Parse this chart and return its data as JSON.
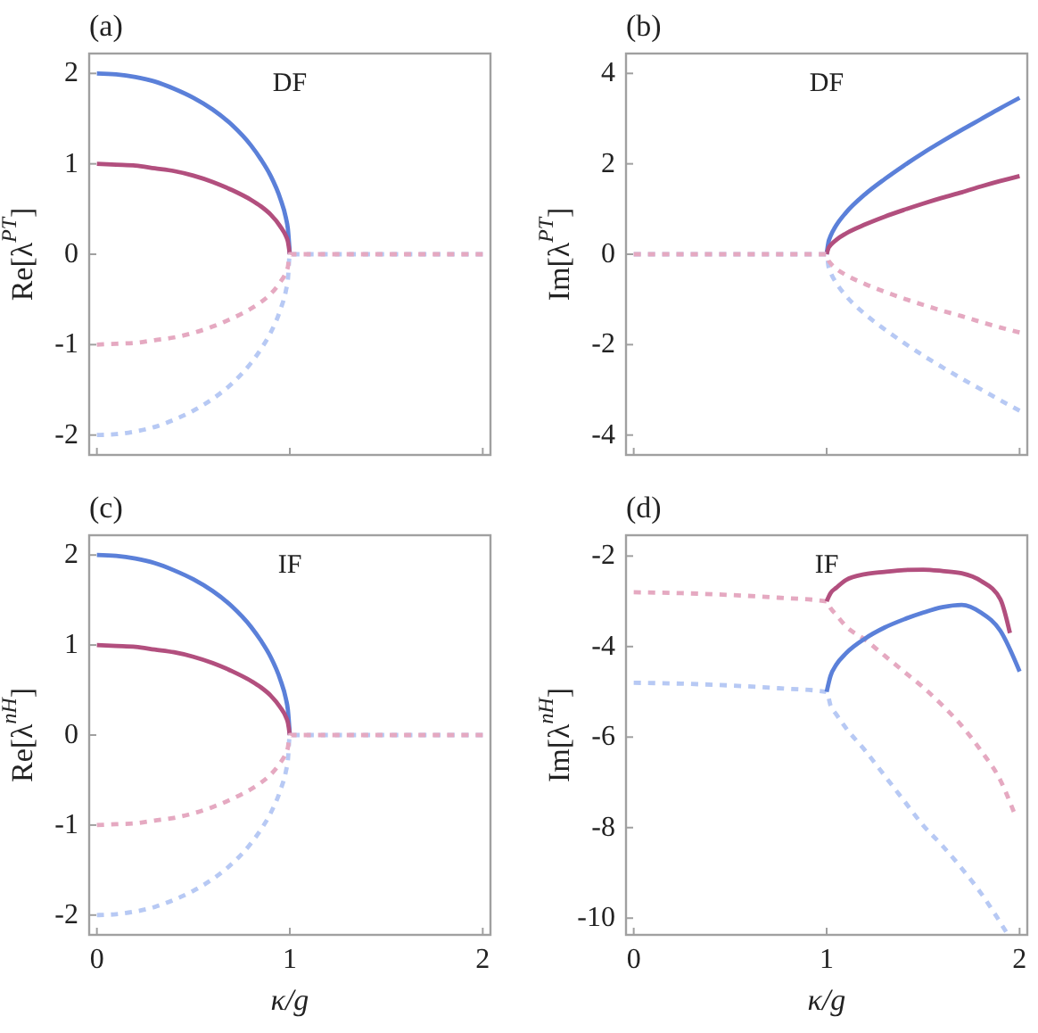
{
  "chart_data": [
    {
      "type": "line",
      "title": "(a)",
      "annotations": [
        "DF"
      ],
      "ylabel": "Re[λ$^{PT}$]",
      "tick_labels": "y",
      "xlim": [
        -0.04,
        2.04
      ],
      "xticks": [
        0,
        1,
        2
      ],
      "ylim": [
        -2.22,
        2.22
      ],
      "yticks": [
        2,
        1,
        0,
        -1,
        -2
      ],
      "x": [
        0,
        0.1,
        0.2,
        0.3,
        0.4,
        0.5,
        0.6,
        0.7,
        0.8,
        0.85,
        0.9,
        0.95,
        0.98,
        0.99,
        1,
        1.01,
        1.02,
        1.05,
        1.1,
        1.2,
        1.3,
        1.4,
        1.5,
        1.6,
        1.7,
        1.8,
        1.9,
        2
      ],
      "series": [
        {
          "color": "#5b80d9",
          "line_style": "solid",
          "values": [
            2,
            1.99,
            1.96,
            1.91,
            1.83,
            1.73,
            1.6,
            1.43,
            1.2,
            1.05,
            0.87,
            0.62,
            0.4,
            0.28,
            0,
            null,
            null,
            null,
            null,
            null,
            null,
            null,
            null,
            null,
            null,
            null,
            null,
            null
          ]
        },
        {
          "color": "#b24f7e",
          "line_style": "solid",
          "values": [
            1,
            0.99,
            0.98,
            0.95,
            0.92,
            0.87,
            0.8,
            0.71,
            0.6,
            0.53,
            0.44,
            0.31,
            0.2,
            0.14,
            0,
            null,
            null,
            null,
            null,
            null,
            null,
            null,
            null,
            null,
            null,
            null,
            null,
            null
          ]
        },
        {
          "color": "#b7c9f4",
          "line_style": "dashed",
          "values": [
            -2,
            -1.99,
            -1.96,
            -1.91,
            -1.83,
            -1.73,
            -1.6,
            -1.43,
            -1.2,
            -1.05,
            -0.87,
            -0.62,
            -0.4,
            -0.28,
            0,
            0,
            0,
            0,
            0,
            0,
            0,
            0,
            0,
            0,
            0,
            0,
            0,
            0
          ]
        },
        {
          "color": "#e5a9c1",
          "line_style": "dashed",
          "values": [
            -1,
            -0.99,
            -0.98,
            -0.95,
            -0.92,
            -0.87,
            -0.8,
            -0.71,
            -0.6,
            -0.53,
            -0.44,
            -0.31,
            -0.2,
            -0.14,
            0,
            0,
            0,
            0,
            0,
            0,
            0,
            0,
            0,
            0,
            0,
            0,
            0,
            0
          ]
        }
      ]
    },
    {
      "type": "line",
      "title": "(b)",
      "annotations": [
        "DF"
      ],
      "ylabel": "Im[λ$^{PT}$]",
      "tick_labels": "y",
      "xlim": [
        -0.04,
        2.04
      ],
      "xticks": [
        0,
        1,
        2
      ],
      "ylim": [
        -4.44,
        4.44
      ],
      "yticks": [
        4,
        2,
        0,
        -2,
        -4
      ],
      "x": [
        0,
        0.1,
        0.2,
        0.3,
        0.4,
        0.5,
        0.6,
        0.7,
        0.8,
        0.85,
        0.9,
        0.95,
        0.98,
        0.99,
        1,
        1.01,
        1.02,
        1.05,
        1.1,
        1.2,
        1.3,
        1.4,
        1.5,
        1.6,
        1.7,
        1.8,
        1.9,
        2
      ],
      "series": [
        {
          "color": "#5b80d9",
          "line_style": "solid",
          "values": [
            null,
            null,
            null,
            null,
            null,
            null,
            null,
            null,
            null,
            null,
            null,
            null,
            null,
            null,
            0,
            0.28,
            0.4,
            0.64,
            0.92,
            1.33,
            1.66,
            1.96,
            2.24,
            2.5,
            2.75,
            2.99,
            3.23,
            3.46
          ]
        },
        {
          "color": "#b24f7e",
          "line_style": "solid",
          "values": [
            null,
            null,
            null,
            null,
            null,
            null,
            null,
            null,
            null,
            null,
            null,
            null,
            null,
            null,
            0,
            0.14,
            0.2,
            0.32,
            0.46,
            0.66,
            0.83,
            0.98,
            1.12,
            1.25,
            1.37,
            1.5,
            1.62,
            1.73
          ]
        },
        {
          "color": "#b7c9f4",
          "line_style": "dashed",
          "values": [
            0,
            0,
            0,
            0,
            0,
            0,
            0,
            0,
            0,
            0,
            0,
            0,
            0,
            0,
            0,
            -0.28,
            -0.4,
            -0.64,
            -0.92,
            -1.33,
            -1.66,
            -1.96,
            -2.24,
            -2.5,
            -2.75,
            -2.99,
            -3.23,
            -3.46
          ]
        },
        {
          "color": "#e5a9c1",
          "line_style": "dashed",
          "values": [
            0,
            0,
            0,
            0,
            0,
            0,
            0,
            0,
            0,
            0,
            0,
            0,
            0,
            0,
            0,
            -0.14,
            -0.2,
            -0.32,
            -0.46,
            -0.66,
            -0.83,
            -0.98,
            -1.12,
            -1.25,
            -1.37,
            -1.5,
            -1.62,
            -1.73
          ]
        }
      ]
    },
    {
      "type": "line",
      "title": "(c)",
      "annotations": [
        "IF"
      ],
      "xlabel": "κ/g",
      "ylabel": "Re[λ$^{nH}$]",
      "xlim": [
        -0.04,
        2.04
      ],
      "xticks": [
        0,
        1,
        2
      ],
      "ylim": [
        -2.22,
        2.22
      ],
      "yticks": [
        2,
        1,
        0,
        -1,
        -2
      ],
      "x": [
        0,
        0.1,
        0.2,
        0.3,
        0.4,
        0.5,
        0.6,
        0.7,
        0.8,
        0.85,
        0.9,
        0.95,
        0.98,
        0.99,
        1,
        1.01,
        1.02,
        1.05,
        1.1,
        1.2,
        1.3,
        1.4,
        1.5,
        1.6,
        1.7,
        1.8,
        1.9,
        2
      ],
      "series": [
        {
          "color": "#5b80d9",
          "line_style": "solid",
          "values": [
            2,
            1.99,
            1.96,
            1.91,
            1.83,
            1.73,
            1.6,
            1.43,
            1.2,
            1.05,
            0.87,
            0.62,
            0.4,
            0.28,
            0,
            null,
            null,
            null,
            null,
            null,
            null,
            null,
            null,
            null,
            null,
            null,
            null,
            null
          ]
        },
        {
          "color": "#b24f7e",
          "line_style": "solid",
          "values": [
            1,
            0.99,
            0.98,
            0.95,
            0.92,
            0.87,
            0.8,
            0.71,
            0.6,
            0.53,
            0.44,
            0.31,
            0.2,
            0.14,
            0,
            null,
            null,
            null,
            null,
            null,
            null,
            null,
            null,
            null,
            null,
            null,
            null,
            null
          ]
        },
        {
          "color": "#b7c9f4",
          "line_style": "dashed",
          "values": [
            -2,
            -1.99,
            -1.96,
            -1.91,
            -1.83,
            -1.73,
            -1.6,
            -1.43,
            -1.2,
            -1.05,
            -0.87,
            -0.62,
            -0.4,
            -0.28,
            0,
            0,
            0,
            0,
            0,
            0,
            0,
            0,
            0,
            0,
            0,
            0,
            0,
            0
          ]
        },
        {
          "color": "#e5a9c1",
          "line_style": "dashed",
          "values": [
            -1,
            -0.99,
            -0.98,
            -0.95,
            -0.92,
            -0.87,
            -0.8,
            -0.71,
            -0.6,
            -0.53,
            -0.44,
            -0.31,
            -0.2,
            -0.14,
            0,
            0,
            0,
            0,
            0,
            0,
            0,
            0,
            0,
            0,
            0,
            0,
            0,
            0
          ]
        }
      ]
    },
    {
      "type": "line",
      "title": "(d)",
      "annotations": [
        "IF"
      ],
      "xlabel": "κ/g",
      "ylabel": "Im[λ$^{nH}$]",
      "xlim": [
        -0.04,
        2.04
      ],
      "xticks": [
        0,
        1,
        2
      ],
      "ylim": [
        -10.37,
        -1.54
      ],
      "yticks": [
        -2,
        -4,
        -6,
        -8,
        -10
      ],
      "series": [
        {
          "color": "#e5a9c1",
          "line_style": "dashed",
          "x": [
            0,
            0.25,
            0.5,
            0.75,
            1,
            1.02,
            1.05,
            1.1,
            1.2,
            1.3,
            1.4,
            1.5,
            1.6,
            1.7,
            1.8,
            1.9,
            1.97
          ],
          "values": [
            -2.8,
            -2.82,
            -2.86,
            -2.92,
            -3.0,
            -3.15,
            -3.3,
            -3.55,
            -3.85,
            -4.2,
            -4.55,
            -4.9,
            -5.3,
            -5.75,
            -6.3,
            -6.95,
            -7.65
          ]
        },
        {
          "color": "#b7c9f4",
          "line_style": "dashed",
          "x": [
            0,
            0.25,
            0.5,
            0.75,
            1,
            1.02,
            1.05,
            1.1,
            1.2,
            1.3,
            1.4,
            1.5,
            1.6,
            1.7,
            1.8,
            1.93
          ],
          "values": [
            -4.8,
            -4.82,
            -4.86,
            -4.92,
            -5.0,
            -5.3,
            -5.5,
            -5.8,
            -6.3,
            -6.85,
            -7.4,
            -7.95,
            -8.4,
            -8.9,
            -9.45,
            -10.3
          ]
        },
        {
          "color": "#b24f7e",
          "line_style": "solid",
          "x": [
            1,
            1.02,
            1.05,
            1.1,
            1.2,
            1.3,
            1.4,
            1.5,
            1.6,
            1.7,
            1.8,
            1.9,
            1.95
          ],
          "values": [
            -3.0,
            -2.82,
            -2.7,
            -2.53,
            -2.4,
            -2.35,
            -2.31,
            -2.3,
            -2.33,
            -2.38,
            -2.55,
            -2.95,
            -3.7
          ]
        },
        {
          "color": "#5b80d9",
          "line_style": "solid",
          "x": [
            1,
            1.02,
            1.05,
            1.1,
            1.2,
            1.3,
            1.4,
            1.5,
            1.6,
            1.7,
            1.8,
            1.9,
            2
          ],
          "values": [
            -5.0,
            -4.65,
            -4.4,
            -4.15,
            -3.82,
            -3.58,
            -3.4,
            -3.25,
            -3.13,
            -3.08,
            -3.25,
            -3.65,
            -4.55
          ]
        }
      ]
    }
  ]
}
